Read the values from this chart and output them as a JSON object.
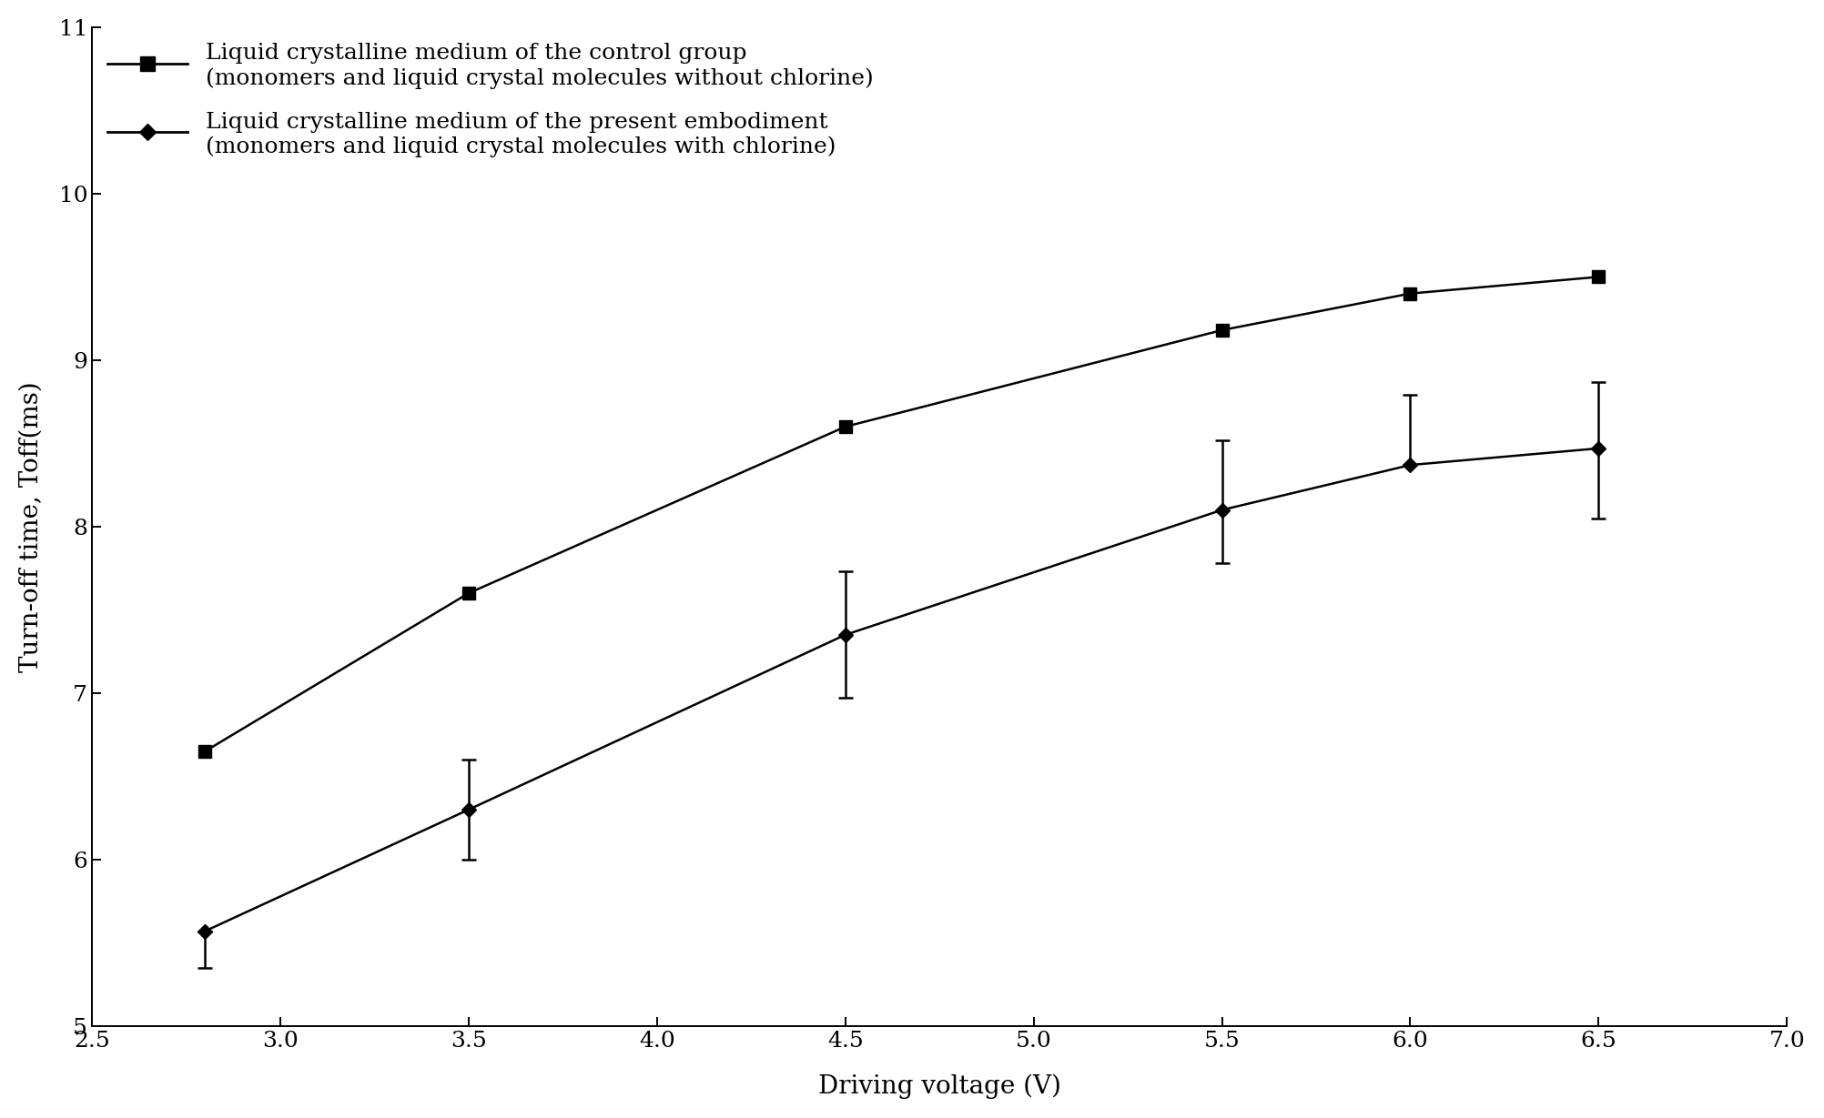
{
  "x": [
    2.8,
    3.5,
    4.5,
    5.5,
    6.0,
    6.5
  ],
  "control_y": [
    6.65,
    7.6,
    8.6,
    9.18,
    9.4,
    9.5
  ],
  "present_y": [
    5.57,
    6.3,
    7.35,
    8.1,
    8.37,
    8.47
  ],
  "present_yerr_upper": [
    0.0,
    0.3,
    0.38,
    0.42,
    0.42,
    0.4
  ],
  "present_yerr_lower": [
    0.22,
    0.3,
    0.38,
    0.32,
    0.0,
    0.42
  ],
  "xlabel": "Driving voltage (V)",
  "ylabel": "Turn-off time, Toff(ms)",
  "xlim": [
    2.5,
    7.0
  ],
  "ylim": [
    5.0,
    11.0
  ],
  "xticks": [
    2.5,
    3.0,
    3.5,
    4.0,
    4.5,
    5.0,
    5.5,
    6.0,
    6.5,
    7.0
  ],
  "yticks": [
    5,
    6,
    7,
    8,
    9,
    10,
    11
  ],
  "legend_line1": "Liquid crystalline medium of the control group",
  "legend_line2": "(monomers and liquid crystal molecules without chlorine)",
  "legend_line3": "Liquid crystalline medium of the present embodiment",
  "legend_line4": "(monomers and liquid crystal molecules with chlorine)",
  "color": "#000000",
  "background_color": "#ffffff",
  "label_fontsize": 20,
  "tick_fontsize": 18,
  "legend_fontsize": 18
}
